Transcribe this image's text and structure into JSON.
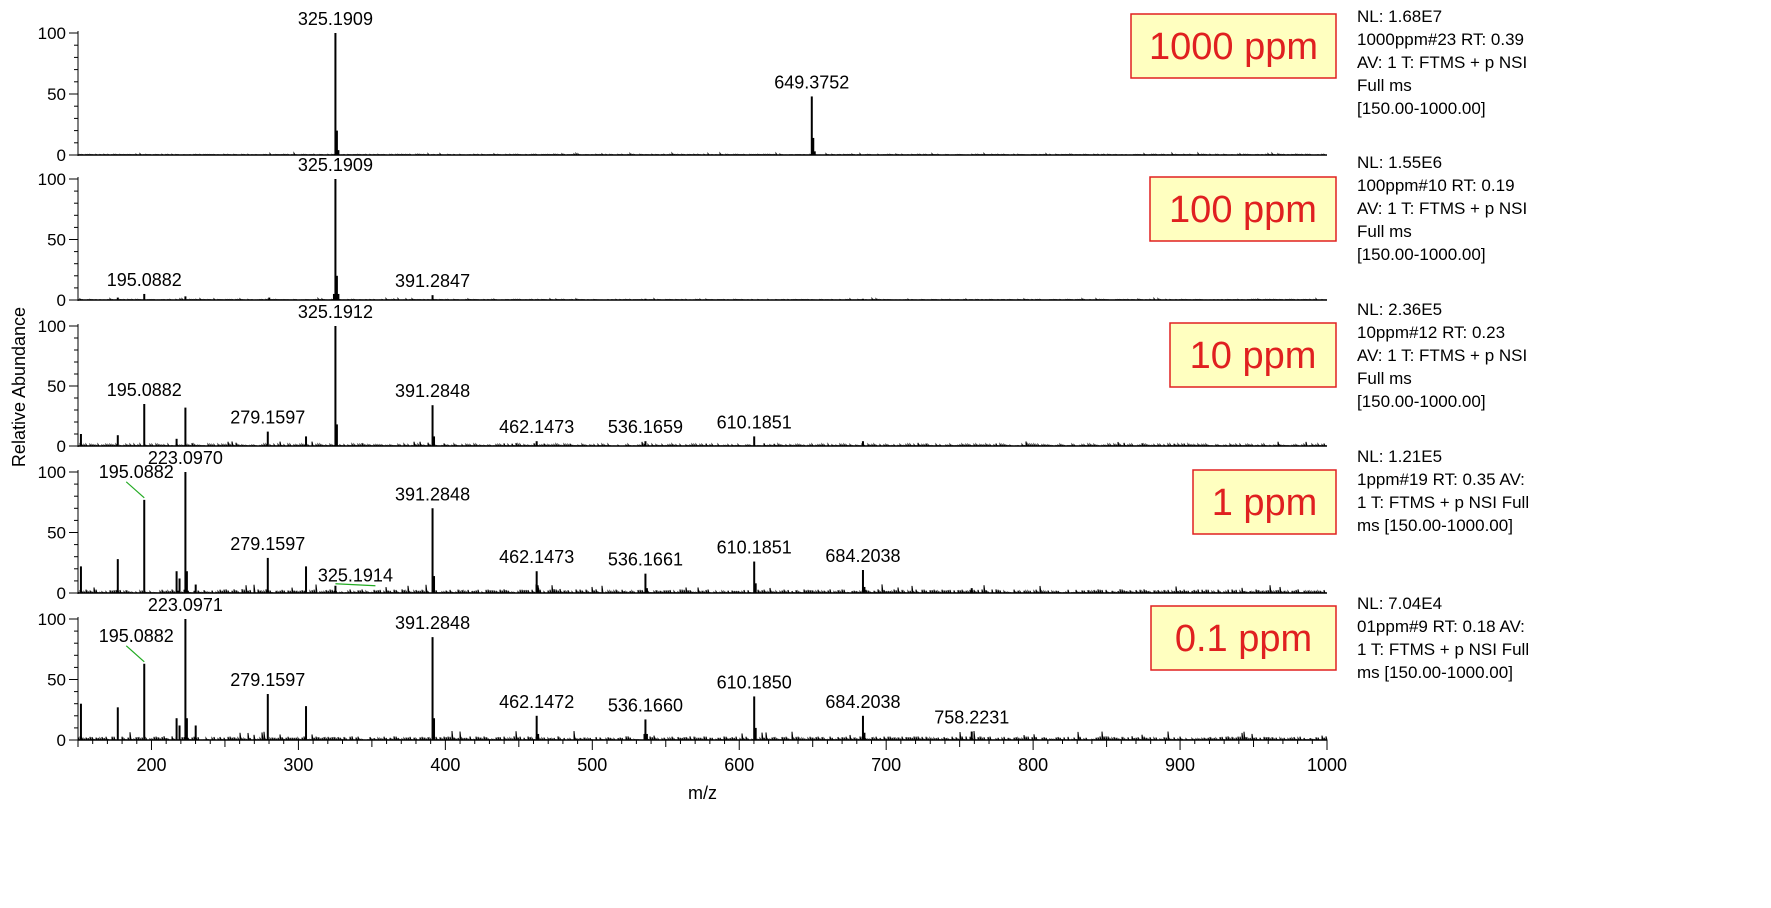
{
  "chart_data": {
    "type": "line",
    "xlabel": "m/z",
    "ylabel": "Relative Abundance",
    "xlim": [
      150,
      1000
    ],
    "x_ticks": [
      200,
      300,
      400,
      500,
      600,
      700,
      800,
      900,
      1000
    ],
    "ylim": [
      0,
      100
    ],
    "y_ticks": [
      0,
      50,
      100
    ],
    "colors": {
      "trace": "#000000",
      "label_box_fill": "#ffffc0",
      "label_box_border": "#e02020",
      "label_text": "#e02020",
      "leader_line": "#22aa22"
    },
    "panels": [
      {
        "label": "1000 ppm",
        "info": [
          "NL: 1.68E7",
          "1000ppm#23  RT: 0.39",
          "AV: 1 T: FTMS + p NSI",
          "Full ms",
          "[150.00-1000.00]"
        ],
        "peaks": [
          {
            "mz": 325.1909,
            "intensity": 100,
            "label": "325.1909"
          },
          {
            "mz": 326.19,
            "intensity": 20
          },
          {
            "mz": 327.2,
            "intensity": 4
          },
          {
            "mz": 649.3752,
            "intensity": 48,
            "label": "649.3752"
          },
          {
            "mz": 650.38,
            "intensity": 14
          },
          {
            "mz": 651.38,
            "intensity": 3
          }
        ],
        "noise": 0.6
      },
      {
        "label": "100 ppm",
        "info": [
          "NL: 1.55E6",
          "100ppm#10  RT: 0.19",
          "AV: 1 T: FTMS + p NSI",
          "Full ms",
          "[150.00-1000.00]"
        ],
        "peaks": [
          {
            "mz": 195.0882,
            "intensity": 5,
            "label": "195.0882"
          },
          {
            "mz": 177.08,
            "intensity": 2
          },
          {
            "mz": 223.1,
            "intensity": 3
          },
          {
            "mz": 280.16,
            "intensity": 2
          },
          {
            "mz": 324.19,
            "intensity": 5
          },
          {
            "mz": 325.1909,
            "intensity": 100,
            "label": "325.1909"
          },
          {
            "mz": 326.19,
            "intensity": 20
          },
          {
            "mz": 327.2,
            "intensity": 5
          },
          {
            "mz": 391.2847,
            "intensity": 4,
            "label": "391.2847"
          },
          {
            "mz": 536.17,
            "intensity": 1
          },
          {
            "mz": 684.2,
            "intensity": 1
          }
        ],
        "noise": 0.5
      },
      {
        "label": "10 ppm",
        "info": [
          "NL: 2.36E5",
          "10ppm#12  RT: 0.23",
          "AV: 1 T: FTMS + p NSI",
          "Full ms",
          "[150.00-1000.00]"
        ],
        "peaks": [
          {
            "mz": 152.0,
            "intensity": 10
          },
          {
            "mz": 177.08,
            "intensity": 9
          },
          {
            "mz": 195.0882,
            "intensity": 35,
            "label": "195.0882"
          },
          {
            "mz": 217.1,
            "intensity": 6
          },
          {
            "mz": 223.097,
            "intensity": 32
          },
          {
            "mz": 279.1597,
            "intensity": 12,
            "label": "279.1597"
          },
          {
            "mz": 305.18,
            "intensity": 8
          },
          {
            "mz": 325.1912,
            "intensity": 100,
            "label": "325.1912"
          },
          {
            "mz": 326.19,
            "intensity": 18
          },
          {
            "mz": 391.2848,
            "intensity": 34,
            "label": "391.2848"
          },
          {
            "mz": 392.29,
            "intensity": 8
          },
          {
            "mz": 462.1473,
            "intensity": 4,
            "label": "462.1473"
          },
          {
            "mz": 536.1659,
            "intensity": 4,
            "label": "536.1659"
          },
          {
            "mz": 610.1851,
            "intensity": 8,
            "label": "610.1851"
          },
          {
            "mz": 684.2,
            "intensity": 4
          }
        ],
        "noise": 1.5
      },
      {
        "label": "1 ppm",
        "info": [
          "NL: 1.21E5",
          "1ppm#19  RT: 0.35  AV:",
          "1 T: FTMS + p NSI Full",
          "ms [150.00-1000.00]"
        ],
        "peaks": [
          {
            "mz": 152.0,
            "intensity": 22
          },
          {
            "mz": 177.08,
            "intensity": 28
          },
          {
            "mz": 195.0882,
            "intensity": 77,
            "label": "195.0882"
          },
          {
            "mz": 217.1,
            "intensity": 18
          },
          {
            "mz": 219.1,
            "intensity": 12
          },
          {
            "mz": 223.097,
            "intensity": 100,
            "label": "223.0970"
          },
          {
            "mz": 224.1,
            "intensity": 18
          },
          {
            "mz": 230.1,
            "intensity": 7
          },
          {
            "mz": 279.1597,
            "intensity": 29,
            "label": "279.1597"
          },
          {
            "mz": 305.18,
            "intensity": 22
          },
          {
            "mz": 325.1914,
            "intensity": 6,
            "label": "325.1914"
          },
          {
            "mz": 391.2848,
            "intensity": 70,
            "label": "391.2848"
          },
          {
            "mz": 392.29,
            "intensity": 14
          },
          {
            "mz": 462.1473,
            "intensity": 18,
            "label": "462.1473"
          },
          {
            "mz": 463.15,
            "intensity": 4
          },
          {
            "mz": 536.1661,
            "intensity": 16,
            "label": "536.1661"
          },
          {
            "mz": 537.17,
            "intensity": 4
          },
          {
            "mz": 610.1851,
            "intensity": 26,
            "label": "610.1851"
          },
          {
            "mz": 611.19,
            "intensity": 8
          },
          {
            "mz": 684.2038,
            "intensity": 19,
            "label": "684.2038"
          },
          {
            "mz": 685.2,
            "intensity": 5
          },
          {
            "mz": 758.22,
            "intensity": 4
          }
        ],
        "noise": 3
      },
      {
        "label": "0.1 ppm",
        "info": [
          "NL: 7.04E4",
          "01ppm#9  RT: 0.18  AV:",
          "1 T: FTMS + p NSI Full",
          "ms [150.00-1000.00]"
        ],
        "peaks": [
          {
            "mz": 152.0,
            "intensity": 30
          },
          {
            "mz": 177.08,
            "intensity": 27
          },
          {
            "mz": 195.0882,
            "intensity": 63,
            "label": "195.0882"
          },
          {
            "mz": 217.1,
            "intensity": 18
          },
          {
            "mz": 219.1,
            "intensity": 12
          },
          {
            "mz": 223.0971,
            "intensity": 100,
            "label": "223.0971"
          },
          {
            "mz": 224.1,
            "intensity": 18
          },
          {
            "mz": 230.1,
            "intensity": 12
          },
          {
            "mz": 279.1597,
            "intensity": 38,
            "label": "279.1597"
          },
          {
            "mz": 305.18,
            "intensity": 28
          },
          {
            "mz": 391.2848,
            "intensity": 85,
            "label": "391.2848"
          },
          {
            "mz": 392.29,
            "intensity": 18
          },
          {
            "mz": 462.1472,
            "intensity": 20,
            "label": "462.1472"
          },
          {
            "mz": 463.15,
            "intensity": 5
          },
          {
            "mz": 536.166,
            "intensity": 17,
            "label": "536.1660"
          },
          {
            "mz": 537.17,
            "intensity": 5
          },
          {
            "mz": 610.185,
            "intensity": 36,
            "label": "610.1850"
          },
          {
            "mz": 611.19,
            "intensity": 10
          },
          {
            "mz": 684.2038,
            "intensity": 20,
            "label": "684.2038"
          },
          {
            "mz": 685.2,
            "intensity": 6
          },
          {
            "mz": 758.2231,
            "intensity": 7,
            "label": "758.2231"
          }
        ],
        "noise": 3
      }
    ]
  }
}
